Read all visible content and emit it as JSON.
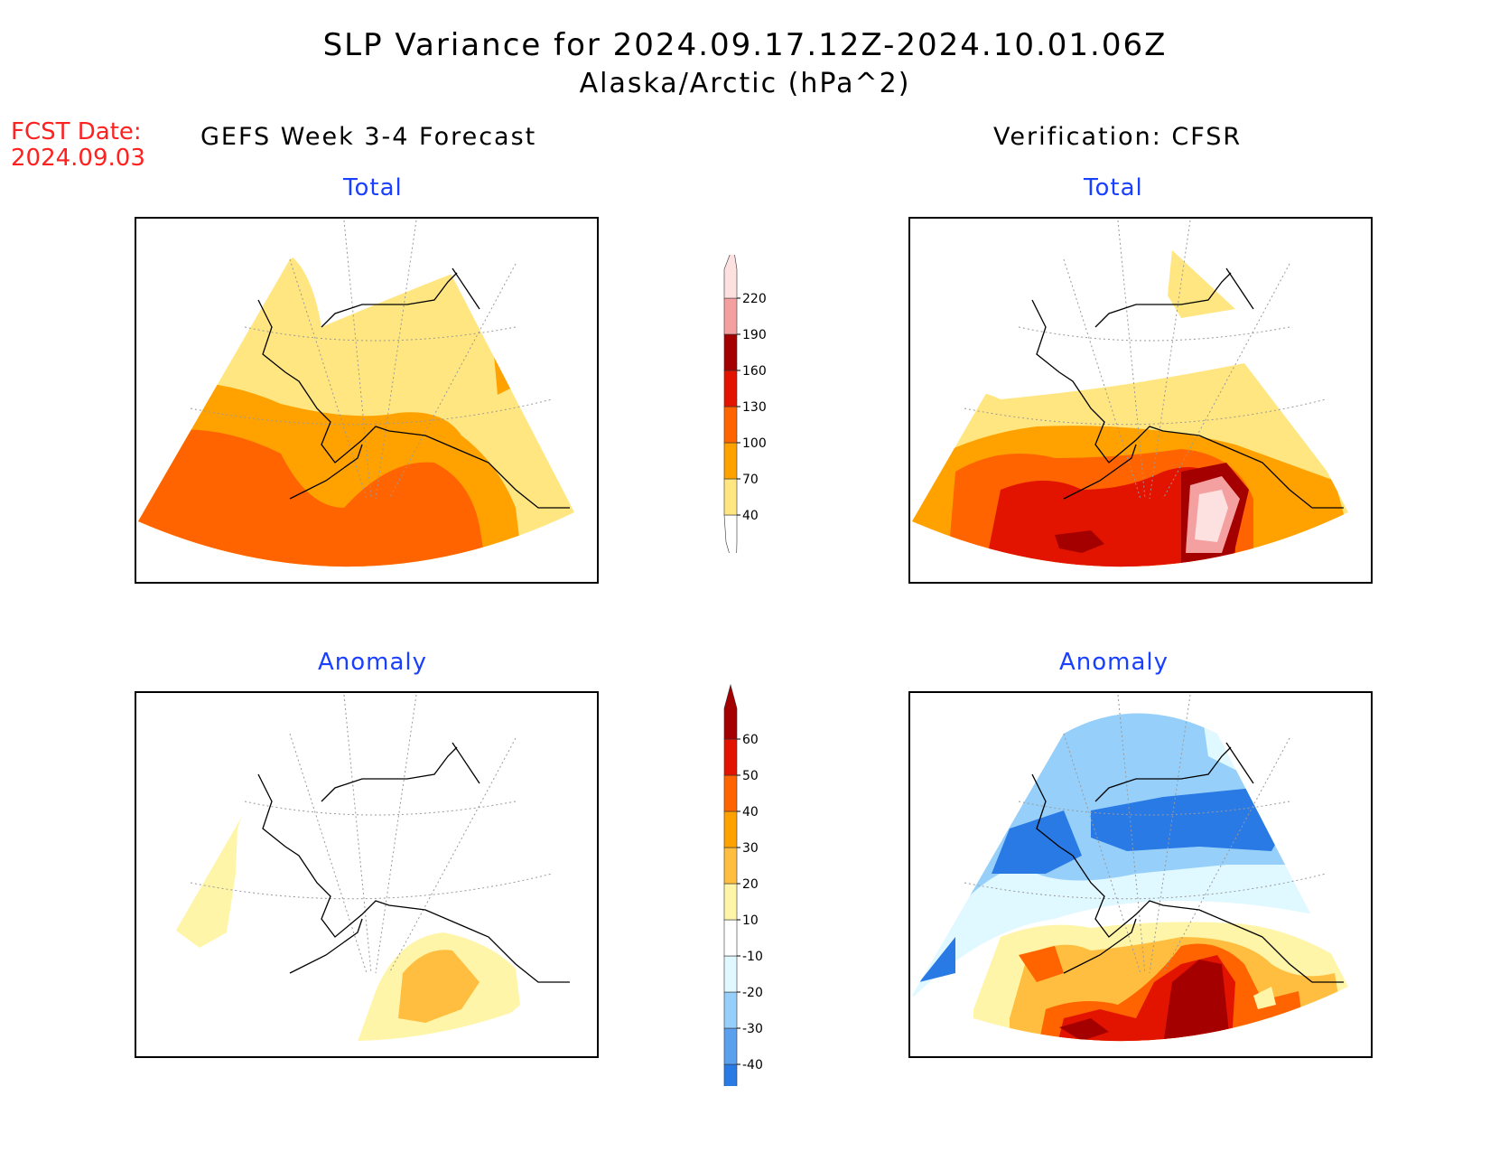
{
  "header": {
    "title": "SLP Variance for 2024.09.17.12Z-2024.10.01.06Z",
    "subtitle": "Alaska/Arctic (hPa^2)"
  },
  "fcst": {
    "label": "FCST Date:",
    "date": "2024.09.03"
  },
  "columns": {
    "left": "GEFS Week 3-4 Forecast",
    "right": "Verification: CFSR"
  },
  "panels": {
    "top_left_title": "Total",
    "top_right_title": "Total",
    "bottom_left_title": "Anomaly",
    "bottom_right_title": "Anomaly"
  },
  "colorbars": {
    "total": {
      "levels": [
        "40",
        "70",
        "100",
        "130",
        "160",
        "190",
        "220"
      ],
      "colors": [
        "#ffe680",
        "#ffa200",
        "#ff6400",
        "#e21400",
        "#a50000",
        "#f4a0a0",
        "#fde0e0"
      ]
    },
    "anomaly": {
      "levels": [
        "-40",
        "-30",
        "-20",
        "-10",
        "10",
        "20",
        "30",
        "40",
        "50",
        "60"
      ],
      "colors": [
        "#2a7ae6",
        "#5aa0ee",
        "#96d0fa",
        "#e0f8ff",
        "#ffffff",
        "#fff5a8",
        "#ffbe40",
        "#ffa200",
        "#ff6400",
        "#e21400",
        "#a50000"
      ]
    }
  }
}
